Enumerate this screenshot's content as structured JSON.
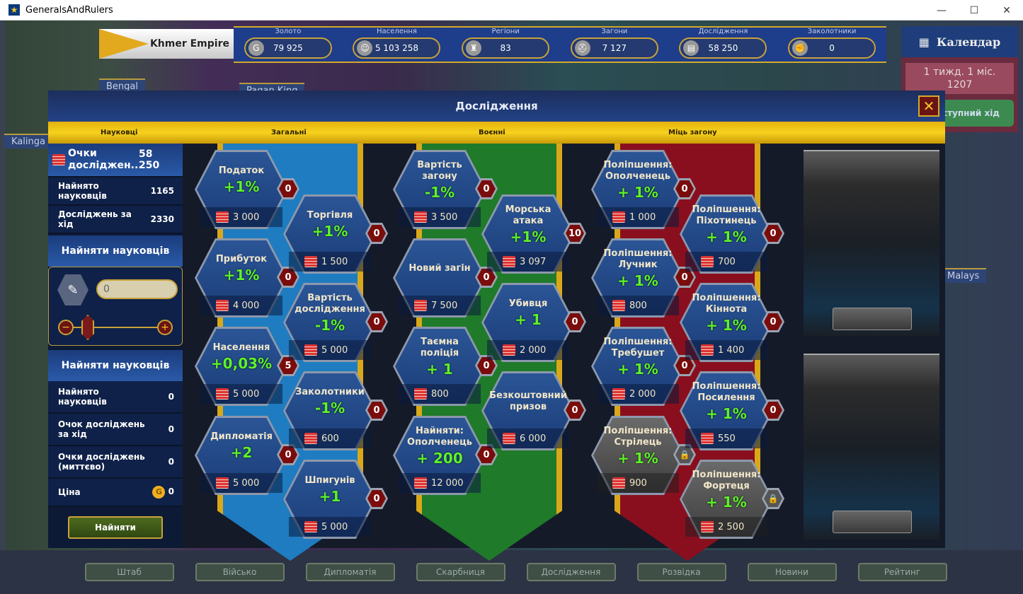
{
  "window": {
    "title": "GeneralsAndRulers",
    "controls": [
      "—",
      "☐",
      "✕"
    ]
  },
  "map": {
    "labels": [
      "Bengal",
      "Pagan King",
      "Kalinga",
      "Malays"
    ]
  },
  "empire": {
    "name": "Khmer Empire"
  },
  "resources": [
    {
      "label": "Золото",
      "value": "79 925",
      "icon": "gold-coin-icon",
      "glyph": "G"
    },
    {
      "label": "Населення",
      "value": "5 103 258",
      "icon": "population-icon",
      "glyph": "☺"
    },
    {
      "label": "Регіони",
      "value": "83",
      "icon": "castle-icon",
      "glyph": "♜"
    },
    {
      "label": "Загони",
      "value": "7 127",
      "icon": "helmet-icon",
      "glyph": "⛑"
    },
    {
      "label": "Дослідження",
      "value": "58 250",
      "icon": "books-icon",
      "glyph": "▤"
    },
    {
      "label": "Заколотники",
      "value": "0",
      "icon": "fist-icon",
      "glyph": "✊"
    }
  ],
  "calendar": {
    "title": "Календар",
    "date_line1": "1 тижд. 1 міс.",
    "date_line2": "1207",
    "next_turn": "ступний хід"
  },
  "modal": {
    "title": "Дослідження",
    "close": "✕",
    "tabs": [
      "Науковці",
      "Загальні",
      "Воєнні",
      "Міць загону"
    ]
  },
  "left": {
    "points_label": "Очки досліджен...",
    "points_value": "58 250",
    "hired_label": "Найнято науковців",
    "hired_value": "1165",
    "per_turn_label": "Досліджень за хід",
    "per_turn_value": "2330",
    "hire_header": "Найняти науковців",
    "hire_input": "0",
    "hire_header2": "Найняти науковців",
    "summary": [
      {
        "label": "Найнято науковців",
        "value": "0"
      },
      {
        "label": "Очок досліджень за хід",
        "value": "0"
      },
      {
        "label": "Очки досліджень (миттєво)",
        "value": "0"
      }
    ],
    "price_label": "Ціна",
    "price_value": "0",
    "hire_button": "Найняти"
  },
  "tiles": [
    {
      "title": "Податок",
      "value": "+1%",
      "cost": "3 000",
      "level": "0"
    },
    {
      "title": "Прибуток",
      "value": "+1%",
      "cost": "4 000",
      "level": "0"
    },
    {
      "title": "Населення",
      "value": "+0,03%",
      "cost": "5 000",
      "level": "5"
    },
    {
      "title": "Дипломатія",
      "value": "+2",
      "cost": "5 000",
      "level": "0"
    },
    {
      "title": "Торгівля",
      "value": "+1%",
      "cost": "1 500",
      "level": "0"
    },
    {
      "title": "Вартість дослідження",
      "value": "-1%",
      "cost": "5 000",
      "level": "0"
    },
    {
      "title": "Заколотники",
      "value": "-1%",
      "cost": "600",
      "level": "0"
    },
    {
      "title": "Шпигунів",
      "value": "+1",
      "cost": "5 000",
      "level": "0"
    },
    {
      "title": "Вартість загону",
      "value": "-1%",
      "cost": "3 500",
      "level": "0"
    },
    {
      "title": "Новий загін",
      "value": "",
      "cost": "7 500",
      "level": "0"
    },
    {
      "title": "Таємна поліція",
      "value": "+ 1",
      "cost": "800",
      "level": "0"
    },
    {
      "title": "Найняти: Ополченець",
      "value": "+ 200",
      "cost": "12 000",
      "level": "0"
    },
    {
      "title": "Морська атака",
      "value": "+1%",
      "cost": "3 097",
      "level": "10"
    },
    {
      "title": "Убивця",
      "value": "+ 1",
      "cost": "2 000",
      "level": "0"
    },
    {
      "title": "Безкоштовний призов",
      "value": "",
      "cost": "6 000",
      "level": "0"
    },
    {
      "title": "Поліпшення: Ополченець",
      "value": "+ 1%",
      "cost": "1 000",
      "level": "0"
    },
    {
      "title": "Поліпшення: Лучник",
      "value": "+ 1%",
      "cost": "800",
      "level": "0"
    },
    {
      "title": "Поліпшення: Требушет",
      "value": "+ 1%",
      "cost": "2 000",
      "level": "0"
    },
    {
      "title": "Поліпшення: Стрілець",
      "value": "+ 1%",
      "cost": "900",
      "level": "",
      "locked": true
    },
    {
      "title": "Поліпшення: Піхотинець",
      "value": "+ 1%",
      "cost": "700",
      "level": "0"
    },
    {
      "title": "Поліпшення: Кіннота",
      "value": "+ 1%",
      "cost": "1 400",
      "level": "0"
    },
    {
      "title": "Поліпшення: Посилення",
      "value": "+ 1%",
      "cost": "550",
      "level": "0"
    },
    {
      "title": "Поліпшення: Фортеця",
      "value": "+ 1%",
      "cost": "2 500",
      "level": "",
      "locked": true
    }
  ],
  "nav": [
    "Штаб",
    "Військо",
    "Дипломатія",
    "Скарбниця",
    "Дослідження",
    "Розвідка",
    "Новини",
    "Рейтинг"
  ],
  "colors": {
    "ribbon_general": "#1f7cc0",
    "ribbon_military": "#1f7a2a",
    "ribbon_troop": "#8a0f1e",
    "accent_gold": "#d9a81a"
  }
}
